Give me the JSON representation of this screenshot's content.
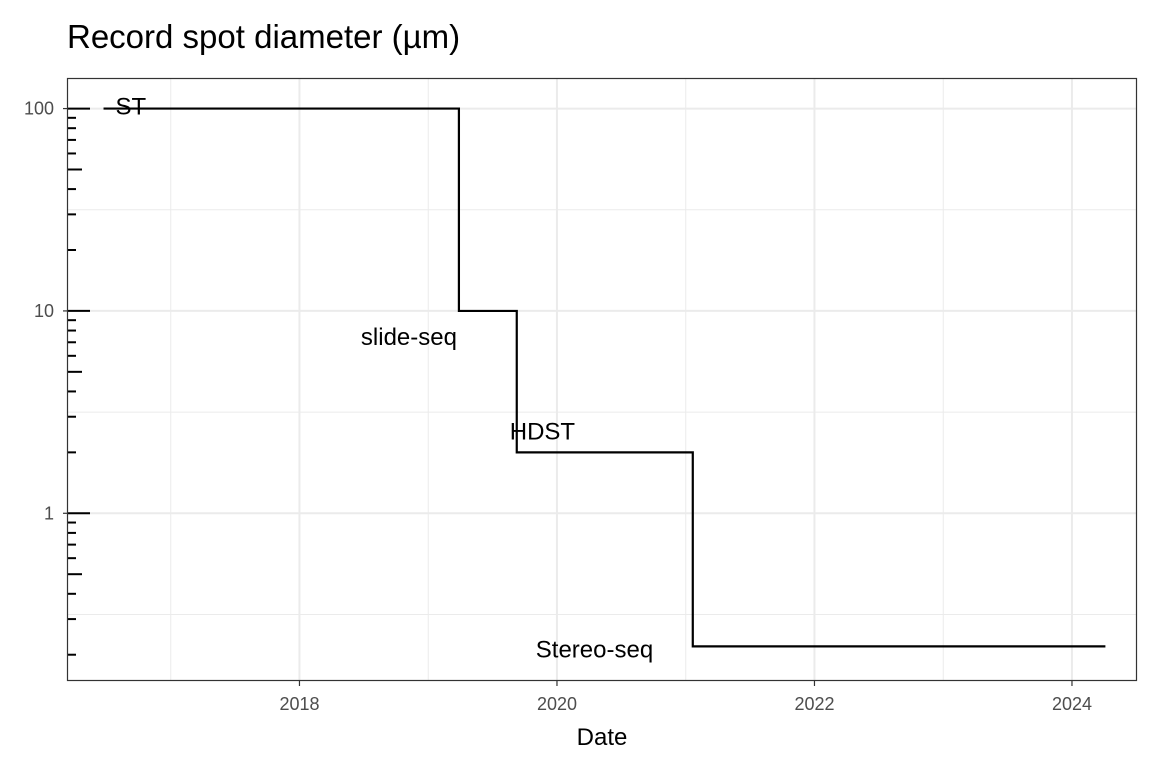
{
  "chart_data": {
    "type": "line",
    "title": "Record spot diameter (µm)",
    "xlabel": "Date",
    "ylabel": "",
    "y_scale": "log10",
    "grid": true,
    "step": "hv",
    "xlim": [
      "2016-03-15",
      "2024-07-01"
    ],
    "ylim": [
      0.15,
      140
    ],
    "x_ticks": [
      "2018",
      "2020",
      "2022",
      "2024"
    ],
    "y_ticks": [
      "1",
      "10",
      "100"
    ],
    "series": [
      {
        "color": "#000000",
        "points": [
          {
            "x": "2016-06-24",
            "y": 100
          },
          {
            "x": "2019-03-29",
            "y": 10
          },
          {
            "x": "2019-09-09",
            "y": 2
          },
          {
            "x": "2021-01-21",
            "y": 0.22
          },
          {
            "x": "2024-04-05",
            "y": 0.22
          }
        ]
      }
    ],
    "annotations": [
      {
        "text": "ST"
      },
      {
        "text": "slide-seq"
      },
      {
        "text": "HDST"
      },
      {
        "text": "Stereo-seq"
      }
    ]
  }
}
